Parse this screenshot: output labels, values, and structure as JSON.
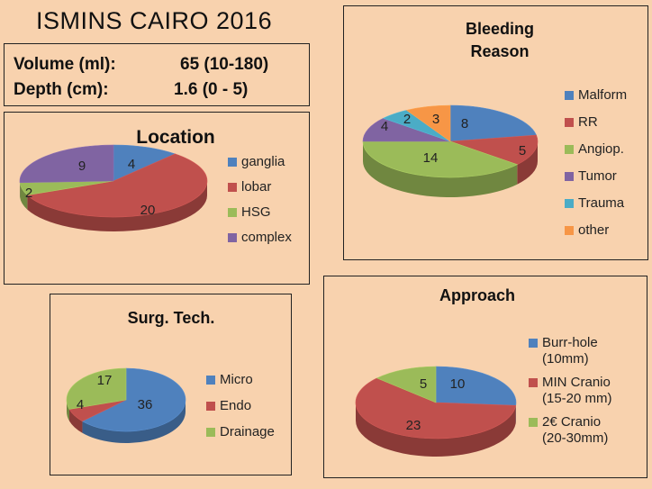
{
  "title": "ISMINS CAIRO 2016",
  "stats": [
    {
      "label": "Volume (ml):",
      "value": "65 (10-180)"
    },
    {
      "label": "Depth   (cm):",
      "value": "1.6 (0 - 5)"
    }
  ],
  "colors": {
    "blue": "#4f81bd",
    "red": "#c0504d",
    "green": "#9bbb59",
    "purple": "#8064a2",
    "cyan": "#4bacc6",
    "orange": "#f79646"
  },
  "chart_data": [
    {
      "id": "location",
      "type": "pie",
      "title": "Location",
      "categories": [
        "ganglia",
        "lobar",
        "HSG",
        "complex"
      ],
      "values": [
        4,
        20,
        2,
        9
      ],
      "colors": [
        "#4f81bd",
        "#c0504d",
        "#9bbb59",
        "#8064a2"
      ]
    },
    {
      "id": "bleeding",
      "type": "pie",
      "title": "Bleeding Reason",
      "title_lines": [
        "Bleeding",
        "Reason"
      ],
      "categories": [
        "Malform",
        "RR",
        "Angiop.",
        "Tumor",
        "Trauma",
        "other"
      ],
      "values": [
        8,
        5,
        14,
        4,
        2,
        3
      ],
      "colors": [
        "#4f81bd",
        "#c0504d",
        "#9bbb59",
        "#8064a2",
        "#4bacc6",
        "#f79646"
      ]
    },
    {
      "id": "surg",
      "type": "pie",
      "title": "Surg. Tech.",
      "categories": [
        "Micro",
        "Endo",
        "Drainage"
      ],
      "values": [
        36,
        4,
        17
      ],
      "colors": [
        "#4f81bd",
        "#c0504d",
        "#9bbb59"
      ]
    },
    {
      "id": "approach",
      "type": "pie",
      "title": "Approach",
      "categories": [
        "Burr-hole (10mm)",
        "MIN Cranio (15-20 mm)",
        "2€ Cranio (20-30mm)"
      ],
      "legend_lines": [
        [
          "Burr-hole",
          "(10mm)"
        ],
        [
          "MIN Cranio",
          "(15-20 mm)"
        ],
        [
          "2€ Cranio",
          "(20-30mm)"
        ]
      ],
      "values": [
        10,
        23,
        5
      ],
      "colors": [
        "#4f81bd",
        "#c0504d",
        "#9bbb59"
      ]
    }
  ]
}
